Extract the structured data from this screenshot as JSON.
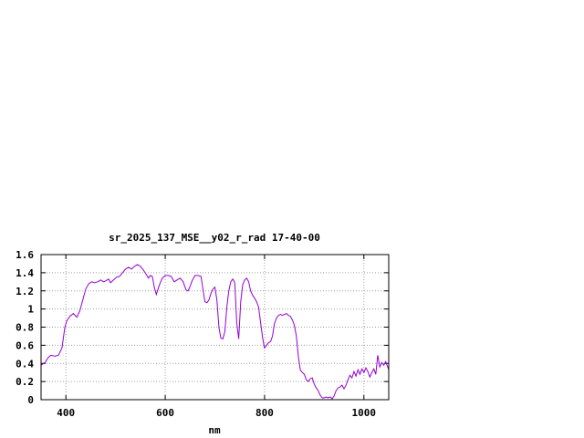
{
  "chart_data": {
    "type": "line",
    "title": "sr_2025_137_MSE__y02_r_rad 17-40-00",
    "xlabel": "nm",
    "ylabel": "",
    "xlim": [
      350,
      1050
    ],
    "ylim": [
      0,
      1.6
    ],
    "grid": true,
    "x_ticks": [
      400,
      600,
      800,
      1000
    ],
    "y_ticks": [
      0,
      0.2,
      0.4,
      0.6,
      0.8,
      1,
      1.2,
      1.4,
      1.6
    ],
    "x_tick_labels": [
      "400",
      "600",
      "800",
      "1000"
    ],
    "y_tick_labels": [
      "0",
      "0.2",
      "0.4",
      "0.6",
      "0.8",
      "1",
      "1.2",
      "1.4",
      "1.6"
    ],
    "line_color": "#9400d3",
    "series": [
      {
        "x": [
          350,
          358,
          365,
          370,
          378,
          385,
          392,
          398,
          402,
          408,
          415,
          422,
          428,
          434,
          440,
          446,
          452,
          458,
          464,
          470,
          476,
          480,
          486,
          490,
          496,
          502,
          508,
          514,
          520,
          526,
          532,
          538,
          544,
          550,
          556,
          562,
          566,
          570,
          574,
          578,
          582,
          588,
          594,
          600,
          606,
          612,
          618,
          624,
          630,
          636,
          642,
          646,
          650,
          654,
          660,
          666,
          672,
          676,
          680,
          684,
          688,
          692,
          696,
          700,
          704,
          708,
          712,
          716,
          720,
          724,
          728,
          732,
          736,
          740,
          744,
          748,
          752,
          756,
          760,
          764,
          768,
          772,
          776,
          780,
          784,
          788,
          792,
          796,
          800,
          804,
          808,
          812,
          816,
          820,
          824,
          828,
          832,
          836,
          840,
          844,
          848,
          852,
          856,
          860,
          864,
          868,
          872,
          876,
          880,
          884,
          888,
          892,
          896,
          900,
          904,
          908,
          912,
          916,
          920,
          924,
          928,
          932,
          936,
          940,
          944,
          948,
          952,
          956,
          960,
          964,
          968,
          972,
          976,
          980,
          984,
          988,
          992,
          996,
          1000,
          1004,
          1008,
          1012,
          1016,
          1020,
          1024,
          1028,
          1032,
          1036,
          1040,
          1044,
          1048,
          1050
        ],
        "values": [
          0.38,
          0.41,
          0.47,
          0.49,
          0.48,
          0.49,
          0.57,
          0.8,
          0.87,
          0.92,
          0.95,
          0.91,
          0.98,
          1.1,
          1.22,
          1.28,
          1.3,
          1.29,
          1.3,
          1.32,
          1.3,
          1.31,
          1.33,
          1.29,
          1.32,
          1.35,
          1.36,
          1.4,
          1.44,
          1.46,
          1.44,
          1.47,
          1.49,
          1.47,
          1.43,
          1.38,
          1.34,
          1.37,
          1.36,
          1.24,
          1.16,
          1.26,
          1.34,
          1.37,
          1.37,
          1.36,
          1.3,
          1.32,
          1.34,
          1.3,
          1.21,
          1.2,
          1.25,
          1.31,
          1.37,
          1.37,
          1.36,
          1.22,
          1.08,
          1.07,
          1.1,
          1.17,
          1.22,
          1.24,
          1.1,
          0.8,
          0.68,
          0.67,
          0.75,
          1.02,
          1.2,
          1.3,
          1.33,
          1.29,
          0.85,
          0.67,
          1.08,
          1.27,
          1.32,
          1.34,
          1.3,
          1.2,
          1.15,
          1.12,
          1.08,
          1.02,
          0.85,
          0.68,
          0.57,
          0.6,
          0.63,
          0.64,
          0.7,
          0.84,
          0.9,
          0.93,
          0.94,
          0.93,
          0.94,
          0.95,
          0.93,
          0.92,
          0.88,
          0.82,
          0.7,
          0.48,
          0.33,
          0.3,
          0.28,
          0.22,
          0.2,
          0.23,
          0.24,
          0.17,
          0.13,
          0.1,
          0.05,
          0.02,
          0.02,
          0.03,
          0.02,
          0.03,
          0.01,
          0.04,
          0.1,
          0.13,
          0.14,
          0.16,
          0.12,
          0.16,
          0.22,
          0.27,
          0.24,
          0.31,
          0.26,
          0.33,
          0.28,
          0.34,
          0.3,
          0.35,
          0.31,
          0.25,
          0.3,
          0.34,
          0.28,
          0.49,
          0.36,
          0.41,
          0.38,
          0.42,
          0.36,
          0.33
        ]
      }
    ]
  }
}
